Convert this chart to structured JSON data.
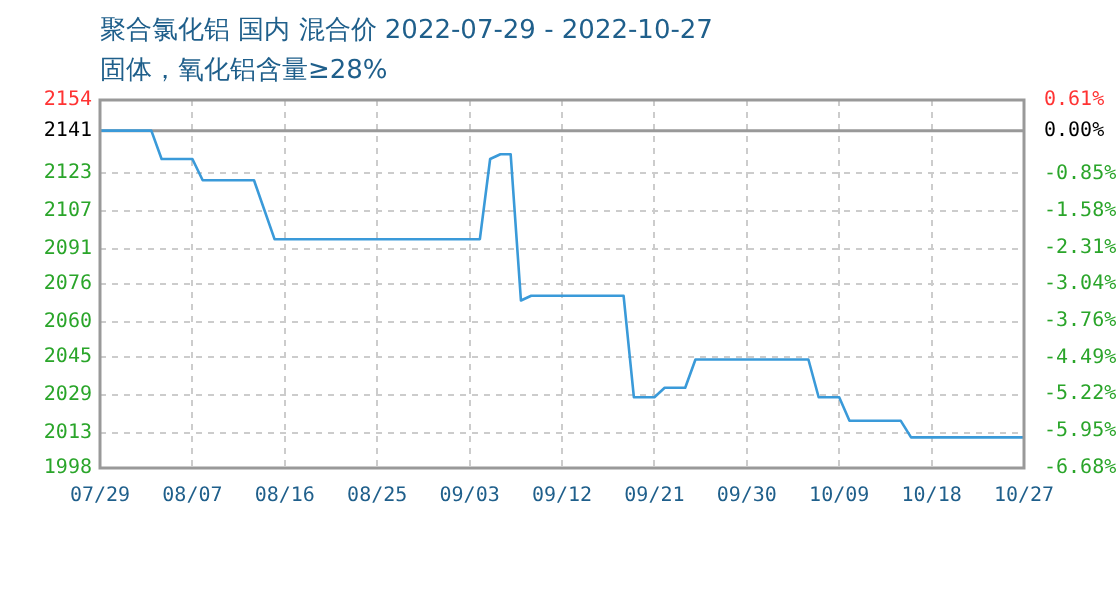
{
  "chart_data": {
    "type": "line",
    "title": "聚合氯化铝 国内 混合价 2022-07-29 - 2022-10-27",
    "subtitle": "固体，氧化铝含量≥28%",
    "x": [
      "--07-29",
      "--08-03",
      "--08-04",
      "--08-07",
      "--08-08",
      "--08-13",
      "--08-15",
      "--09-04",
      "--09-05",
      "--09-06",
      "--09-07",
      "--09-08",
      "--09-09",
      "--09-18",
      "--09-19",
      "--09-21",
      "--09-22",
      "--09-24",
      "--09-25",
      "--10-06",
      "--10-07",
      "--10-09",
      "--10-10",
      "--10-15",
      "--10-16",
      "--10-27"
    ],
    "series": [
      {
        "color": "#3a9ad9",
        "values": [
          2141,
          2141,
          2129,
          2129,
          2120,
          2120,
          2095,
          2095,
          2129,
          2131,
          2131,
          2069,
          2071,
          2071,
          2028,
          2028,
          2032,
          2032,
          2044,
          2044,
          2028,
          2028,
          2018,
          2018,
          2011,
          2011
        ]
      }
    ],
    "xlim": [
      "--07-29",
      "--10-27"
    ],
    "xticks": [
      {
        "value": "--07-29",
        "label": "07/29"
      },
      {
        "value": "--08-07",
        "label": "08/07"
      },
      {
        "value": "--08-16",
        "label": "08/16"
      },
      {
        "value": "--08-25",
        "label": "08/25"
      },
      {
        "value": "--09-03",
        "label": "09/03"
      },
      {
        "value": "--09-12",
        "label": "09/12"
      },
      {
        "value": "--09-21",
        "label": "09/21"
      },
      {
        "value": "--09-30",
        "label": "09/30"
      },
      {
        "value": "--10-09",
        "label": "10/09"
      },
      {
        "value": "--10-18",
        "label": "10/18"
      },
      {
        "value": "--10-27",
        "label": "10/27"
      }
    ],
    "ylim": [
      1998,
      2154
    ],
    "yticks": [
      1998,
      2013,
      2029,
      2045,
      2060,
      2076,
      2091,
      2107,
      2123,
      2141,
      2154
    ],
    "y2lim": [
      -6.68,
      0.61
    ],
    "y2ticks": [
      {
        "value": -6.68,
        "label": "-6.68%"
      },
      {
        "value": -5.95,
        "label": "-5.95%"
      },
      {
        "value": -5.22,
        "label": "-5.22%"
      },
      {
        "value": -4.49,
        "label": "-4.49%"
      },
      {
        "value": -3.76,
        "label": "-3.76%"
      },
      {
        "value": -3.04,
        "label": "-3.04%"
      },
      {
        "value": -2.31,
        "label": "-2.31%"
      },
      {
        "value": -1.58,
        "label": "-1.58%"
      },
      {
        "value": -0.85,
        "label": "-0.85%"
      },
      {
        "value": 0,
        "label": "0.00%"
      },
      {
        "value": 0.61,
        "label": "0.61%"
      }
    ],
    "ref_lines": [
      {
        "axis": "y",
        "value": 2141,
        "color": "#999999"
      }
    ],
    "grid": true,
    "legend": false,
    "marker": "none",
    "line_style": "solid"
  }
}
